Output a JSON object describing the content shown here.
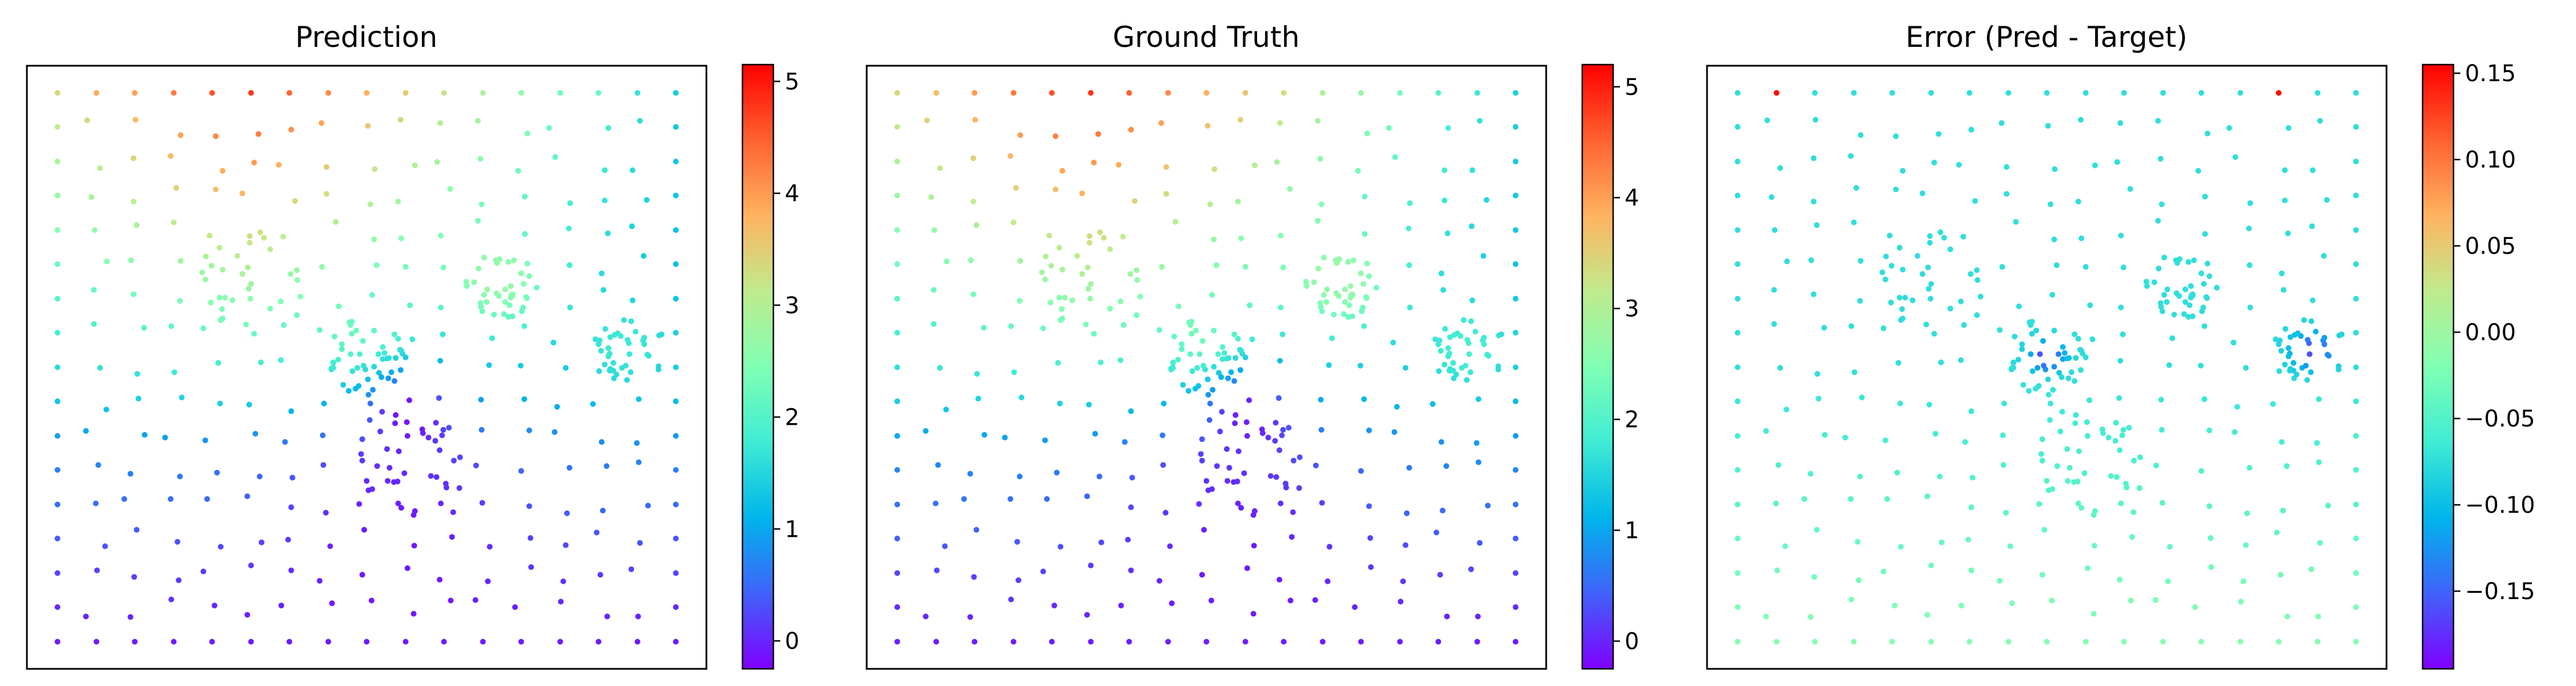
{
  "figure": {
    "colormap": "rainbow",
    "marker_color_note": "point colors follow rainbow colormap (purple=low, red=high)"
  },
  "chart_data": [
    {
      "type": "scatter",
      "title": "Prediction",
      "xlim": [
        0,
        1
      ],
      "ylim": [
        0,
        1
      ],
      "grid": false,
      "ticks_visible": false,
      "colorbar": {
        "min": -0.25,
        "max": 5.15,
        "ticks": [
          0,
          1,
          2,
          3,
          4,
          5
        ],
        "tick_labels": [
          "0",
          "1",
          "2",
          "3",
          "4",
          "5"
        ]
      },
      "field": "solution",
      "x": [],
      "y": [],
      "values": []
    },
    {
      "type": "scatter",
      "title": "Ground Truth",
      "xlim": [
        0,
        1
      ],
      "ylim": [
        0,
        1
      ],
      "grid": false,
      "ticks_visible": false,
      "colorbar": {
        "min": -0.25,
        "max": 5.2,
        "ticks": [
          0,
          1,
          2,
          3,
          4,
          5
        ],
        "tick_labels": [
          "0",
          "1",
          "2",
          "3",
          "4",
          "5"
        ]
      },
      "field": "solution",
      "x": [],
      "y": [],
      "values": []
    },
    {
      "type": "scatter",
      "title": "Error (Pred - Target)",
      "xlim": [
        0,
        1
      ],
      "ylim": [
        0,
        1
      ],
      "grid": false,
      "ticks_visible": false,
      "colorbar": {
        "min": -0.195,
        "max": 0.155,
        "ticks": [
          0.15,
          0.1,
          0.05,
          0.0,
          -0.05,
          -0.1,
          -0.15
        ],
        "tick_labels": [
          "0.15",
          "0.10",
          "0.05",
          "0.00",
          "−0.05",
          "−0.10",
          "−0.15"
        ]
      },
      "field": "error",
      "x": [],
      "y": [],
      "values": []
    }
  ]
}
